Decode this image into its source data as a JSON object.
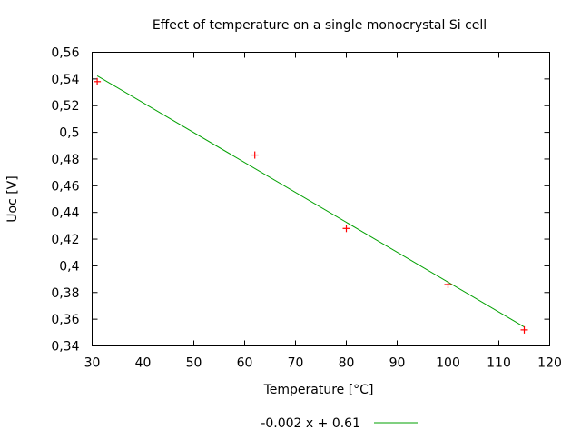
{
  "chart_data": {
    "type": "scatter",
    "title": "Effect of temperature on a single monocrystal Si cell",
    "xlabel": "Temperature [°C]",
    "ylabel": "Uoc [V]",
    "xlim": [
      30,
      120
    ],
    "ylim": [
      0.34,
      0.56
    ],
    "xticks": [
      "30",
      "40",
      "50",
      "60",
      "70",
      "80",
      "90",
      "100",
      "110",
      "120"
    ],
    "xtick_values": [
      30,
      40,
      50,
      60,
      70,
      80,
      90,
      100,
      110,
      120
    ],
    "yticks": [
      "0,34",
      "0,36",
      "0,38",
      "0,4",
      "0,42",
      "0,44",
      "0,46",
      "0,48",
      "0,5",
      "0,52",
      "0,54",
      "0,56"
    ],
    "ytick_values": [
      0.34,
      0.36,
      0.38,
      0.4,
      0.42,
      0.44,
      0.46,
      0.48,
      0.5,
      0.52,
      0.54,
      0.56
    ],
    "grid": false,
    "points": {
      "marker": "plus",
      "color": "#ff0000",
      "x": [
        31,
        62,
        80,
        100,
        115
      ],
      "y": [
        0.538,
        0.483,
        0.428,
        0.386,
        0.352
      ]
    },
    "fit_line": {
      "name": "-0.002 x + 0.61",
      "color": "#00a000",
      "slope": -0.00224,
      "intercept": 0.6118,
      "x_range": [
        31,
        115
      ]
    },
    "legend_placement": "bottom"
  }
}
